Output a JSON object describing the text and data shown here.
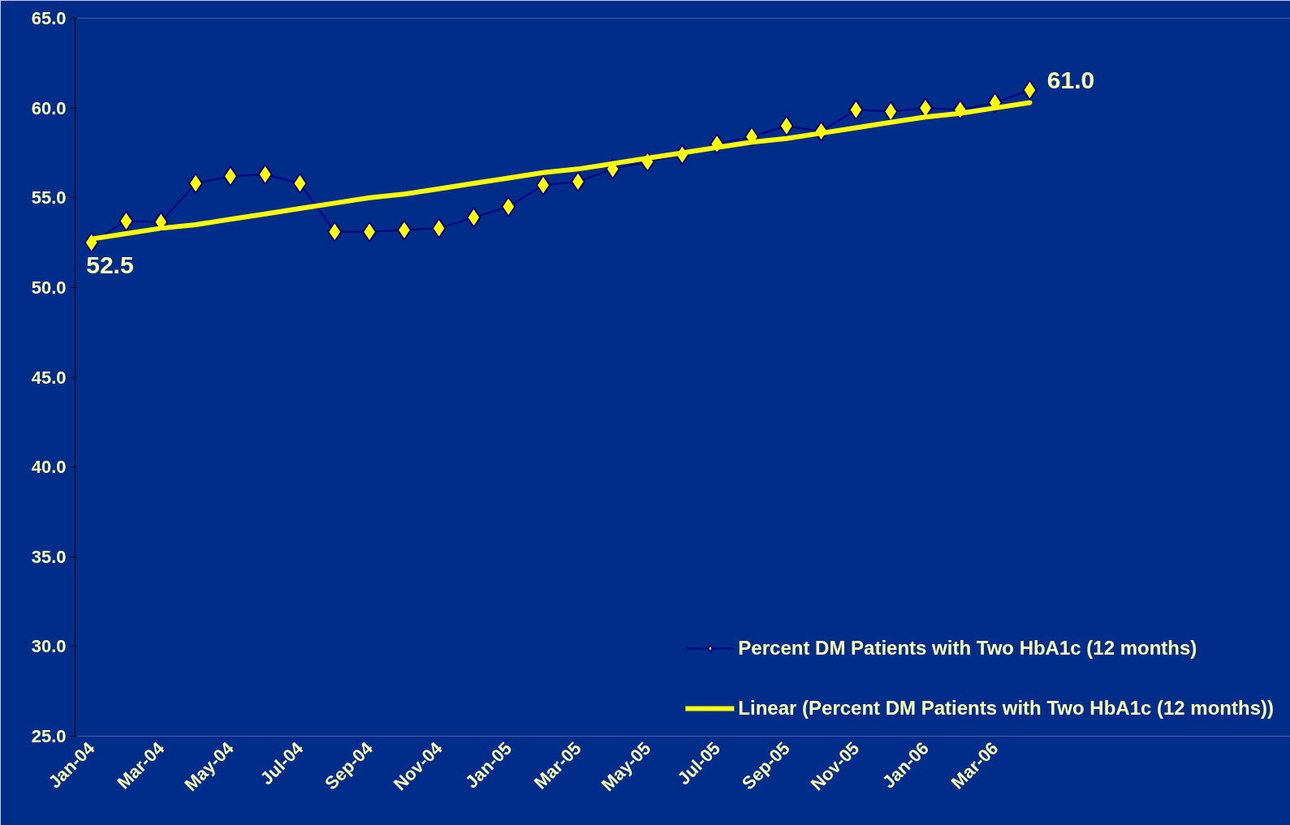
{
  "chart_data": {
    "type": "line",
    "categories": [
      "Jan-04",
      null,
      "Mar-04",
      null,
      "May-04",
      null,
      "Jul-04",
      null,
      "Sep-04",
      null,
      "Nov-04",
      null,
      "Jan-05",
      null,
      "Mar-05",
      null,
      "May-05",
      null,
      "Jul-05",
      null,
      "Sep-05",
      null,
      "Nov-05",
      null,
      "Jan-06",
      null,
      "Mar-06",
      null
    ],
    "series": [
      {
        "name": "Percent DM Patients with Two HbA1c (12 months)",
        "color": "#ffff00",
        "marker": "diamond",
        "values": [
          52.5,
          53.7,
          53.65,
          55.8,
          56.2,
          56.3,
          55.8,
          53.1,
          53.1,
          53.2,
          53.3,
          53.9,
          54.5,
          55.7,
          55.9,
          56.6,
          57.0,
          57.4,
          58.0,
          58.4,
          59.0,
          58.7,
          59.9,
          59.8,
          60.0,
          59.9,
          60.3,
          61.0
        ],
        "value_labels": [
          "52.5",
          null,
          null,
          null,
          null,
          null,
          null,
          null,
          null,
          null,
          null,
          null,
          null,
          null,
          null,
          null,
          null,
          null,
          null,
          null,
          null,
          null,
          null,
          null,
          null,
          null,
          null,
          "61.0"
        ]
      },
      {
        "name": "Linear (Percent DM Patients with Two HbA1c (12 months))",
        "color": "#ffff00",
        "marker": "none",
        "values": [
          52.7,
          53.0,
          53.3,
          53.5,
          53.8,
          54.1,
          54.4,
          54.7,
          55.0,
          55.2,
          55.5,
          55.8,
          56.1,
          56.4,
          56.6,
          56.9,
          57.2,
          57.5,
          57.8,
          58.1,
          58.3,
          58.6,
          58.9,
          59.2,
          59.5,
          59.7,
          60.0,
          60.3
        ]
      }
    ],
    "ylim": [
      25,
      65
    ],
    "yticks": [
      {
        "value": 25,
        "label": "25.0"
      },
      {
        "value": 30,
        "label": "30.0"
      },
      {
        "value": 35,
        "label": "35.0"
      },
      {
        "value": 40,
        "label": "40.0"
      },
      {
        "value": 45,
        "label": "45.0"
      },
      {
        "value": 50,
        "label": "50.0"
      },
      {
        "value": 55,
        "label": "55.0"
      },
      {
        "value": 60,
        "label": "60.0"
      },
      {
        "value": 65,
        "label": "65.0"
      }
    ],
    "grid": false,
    "legend": "bottom right"
  }
}
